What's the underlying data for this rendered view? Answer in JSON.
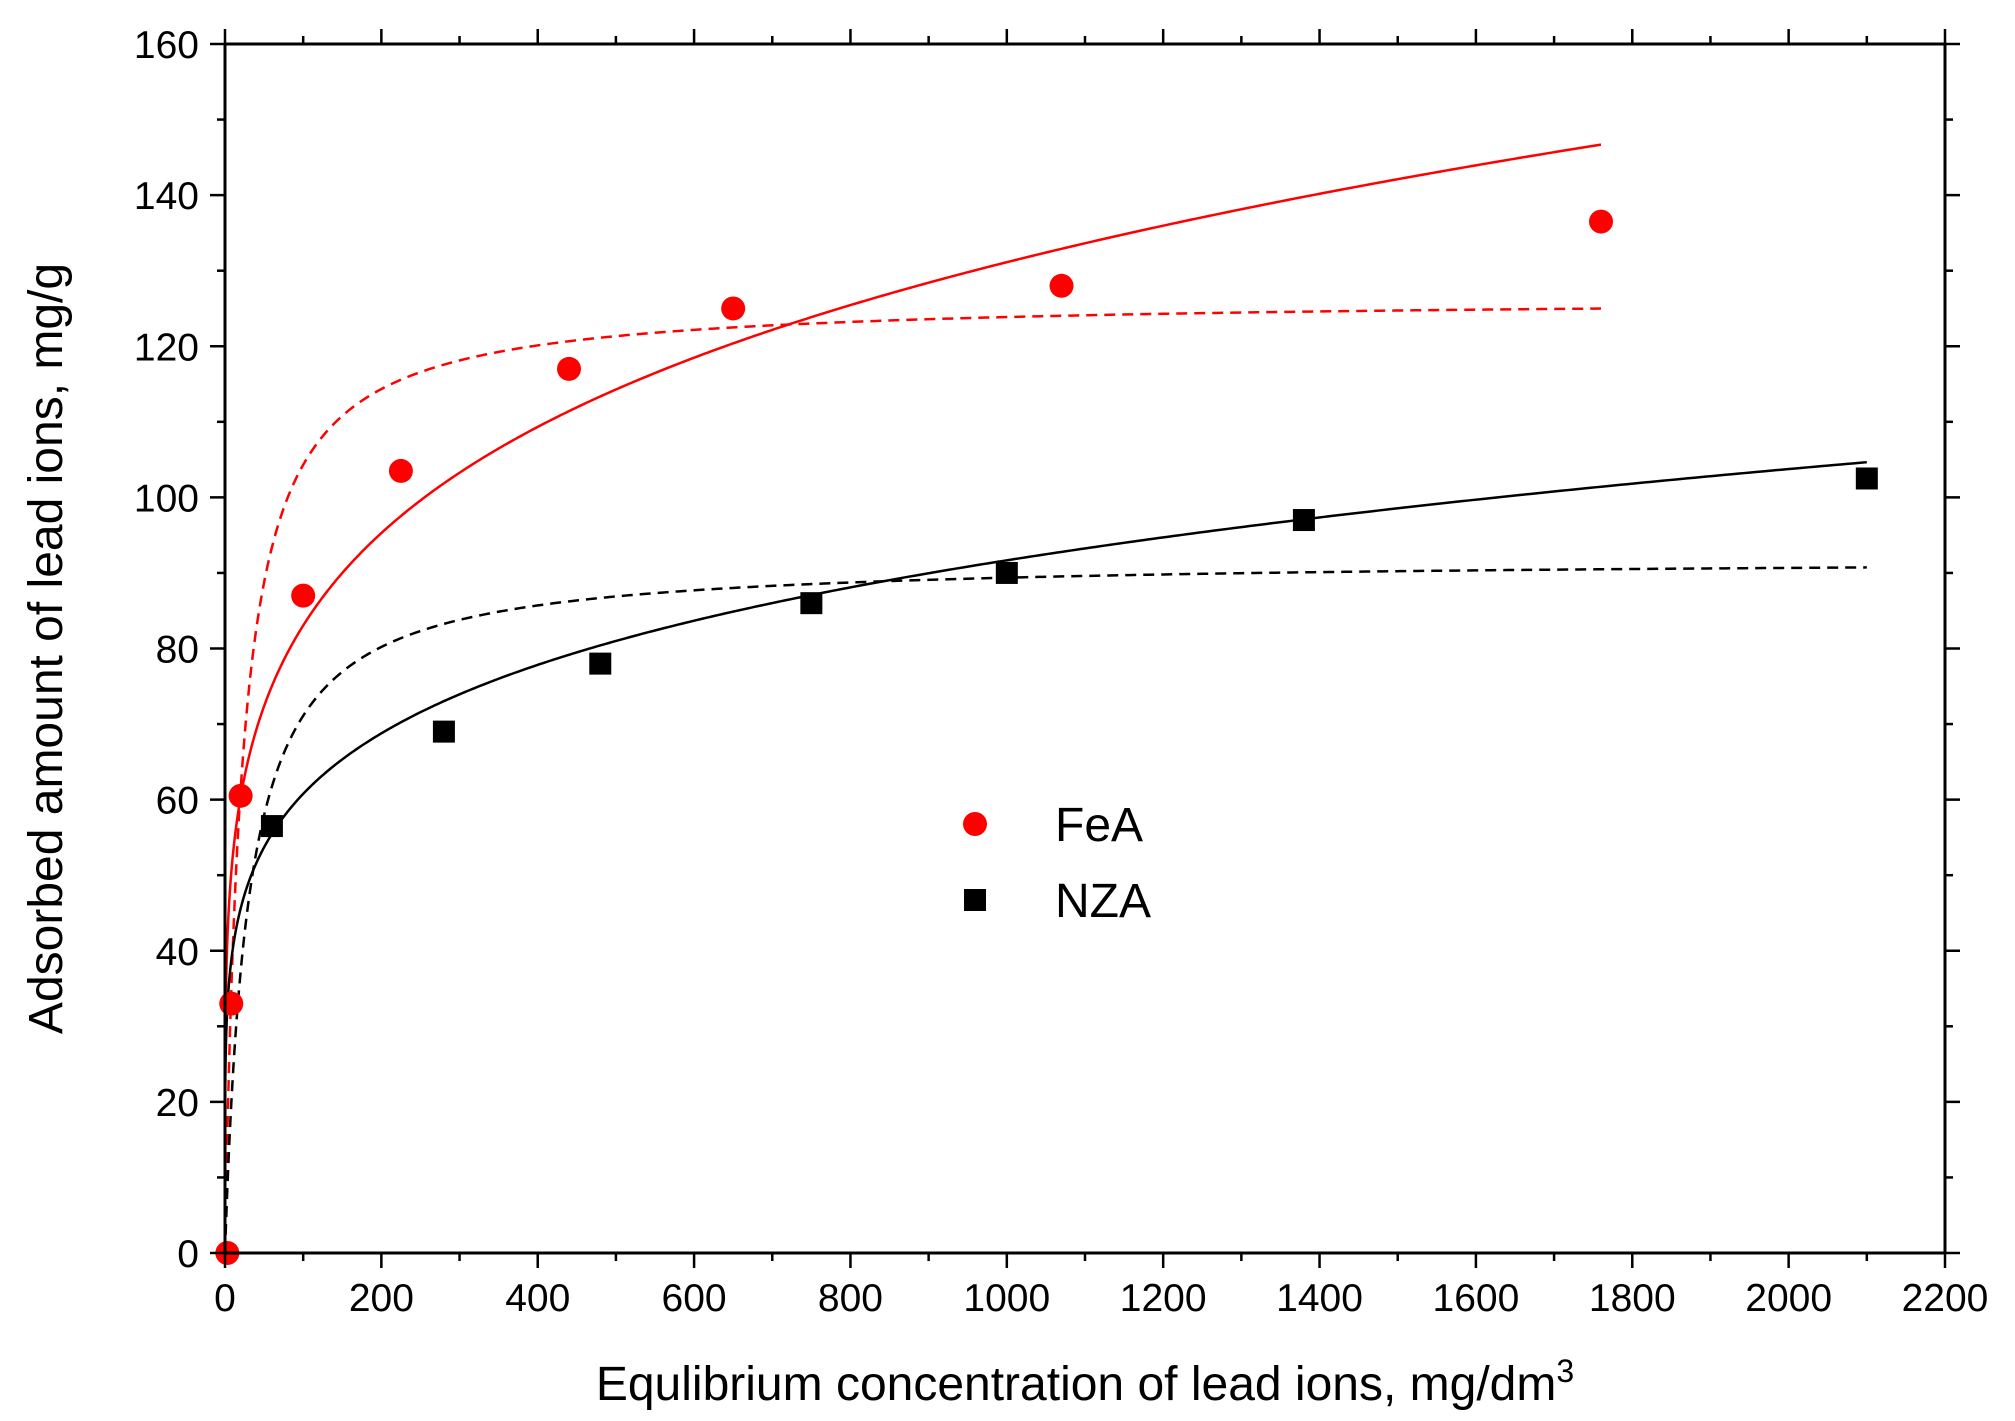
{
  "chart_data": {
    "type": "scatter",
    "title": "",
    "xlabel": "Equlibrium concentration of lead ions, mg/dm",
    "xlabel_superscript": "3",
    "ylabel": "Adsorbed amount of lead ions, mg/g",
    "xlim": [
      0,
      2200
    ],
    "ylim": [
      0,
      160
    ],
    "xticks": [
      0,
      200,
      400,
      600,
      800,
      1000,
      1200,
      1400,
      1600,
      1800,
      2000,
      2200
    ],
    "yticks": [
      0,
      20,
      40,
      60,
      80,
      100,
      120,
      140,
      160
    ],
    "xtick_labels": [
      "0",
      "200",
      "400",
      "600",
      "800",
      "1000",
      "1200",
      "1400",
      "1600",
      "1800",
      "2000",
      "2200"
    ],
    "ytick_labels": [
      "0",
      "20",
      "40",
      "60",
      "80",
      "100",
      "120",
      "140",
      "160"
    ],
    "grid": false,
    "legend_position": "center",
    "series": [
      {
        "name": "FeA",
        "color": "#ff0000",
        "marker": "circle",
        "points": [
          [
            3,
            0
          ],
          [
            8,
            33
          ],
          [
            20,
            60.5
          ],
          [
            100,
            87
          ],
          [
            225,
            103.5
          ],
          [
            440,
            117
          ],
          [
            650,
            125
          ],
          [
            1070,
            128
          ],
          [
            1760,
            136.5
          ]
        ],
        "fits": [
          {
            "style": "solid",
            "model": "freundlich",
            "params": {
              "k": 33.3,
              "n": 5.04
            },
            "x_range": [
              0,
              1760
            ]
          },
          {
            "style": "dashed",
            "model": "langmuir",
            "params": {
              "qmax": 126.5,
              "b": 0.047
            },
            "x_range": [
              0,
              1760
            ]
          }
        ]
      },
      {
        "name": "NZA",
        "color": "#000000",
        "marker": "square",
        "points": [
          [
            60,
            56.5
          ],
          [
            280,
            69
          ],
          [
            480,
            78
          ],
          [
            750,
            86
          ],
          [
            1000,
            90
          ],
          [
            1380,
            97
          ],
          [
            2100,
            102.5
          ]
        ],
        "fits": [
          {
            "style": "solid",
            "model": "freundlich",
            "params": {
              "k": 26.7,
              "n": 5.6
            },
            "x_range": [
              0,
              2100
            ]
          },
          {
            "style": "dashed",
            "model": "langmuir",
            "params": {
              "qmax": 92,
              "b": 0.034
            },
            "x_range": [
              0,
              2100
            ]
          }
        ]
      }
    ]
  }
}
